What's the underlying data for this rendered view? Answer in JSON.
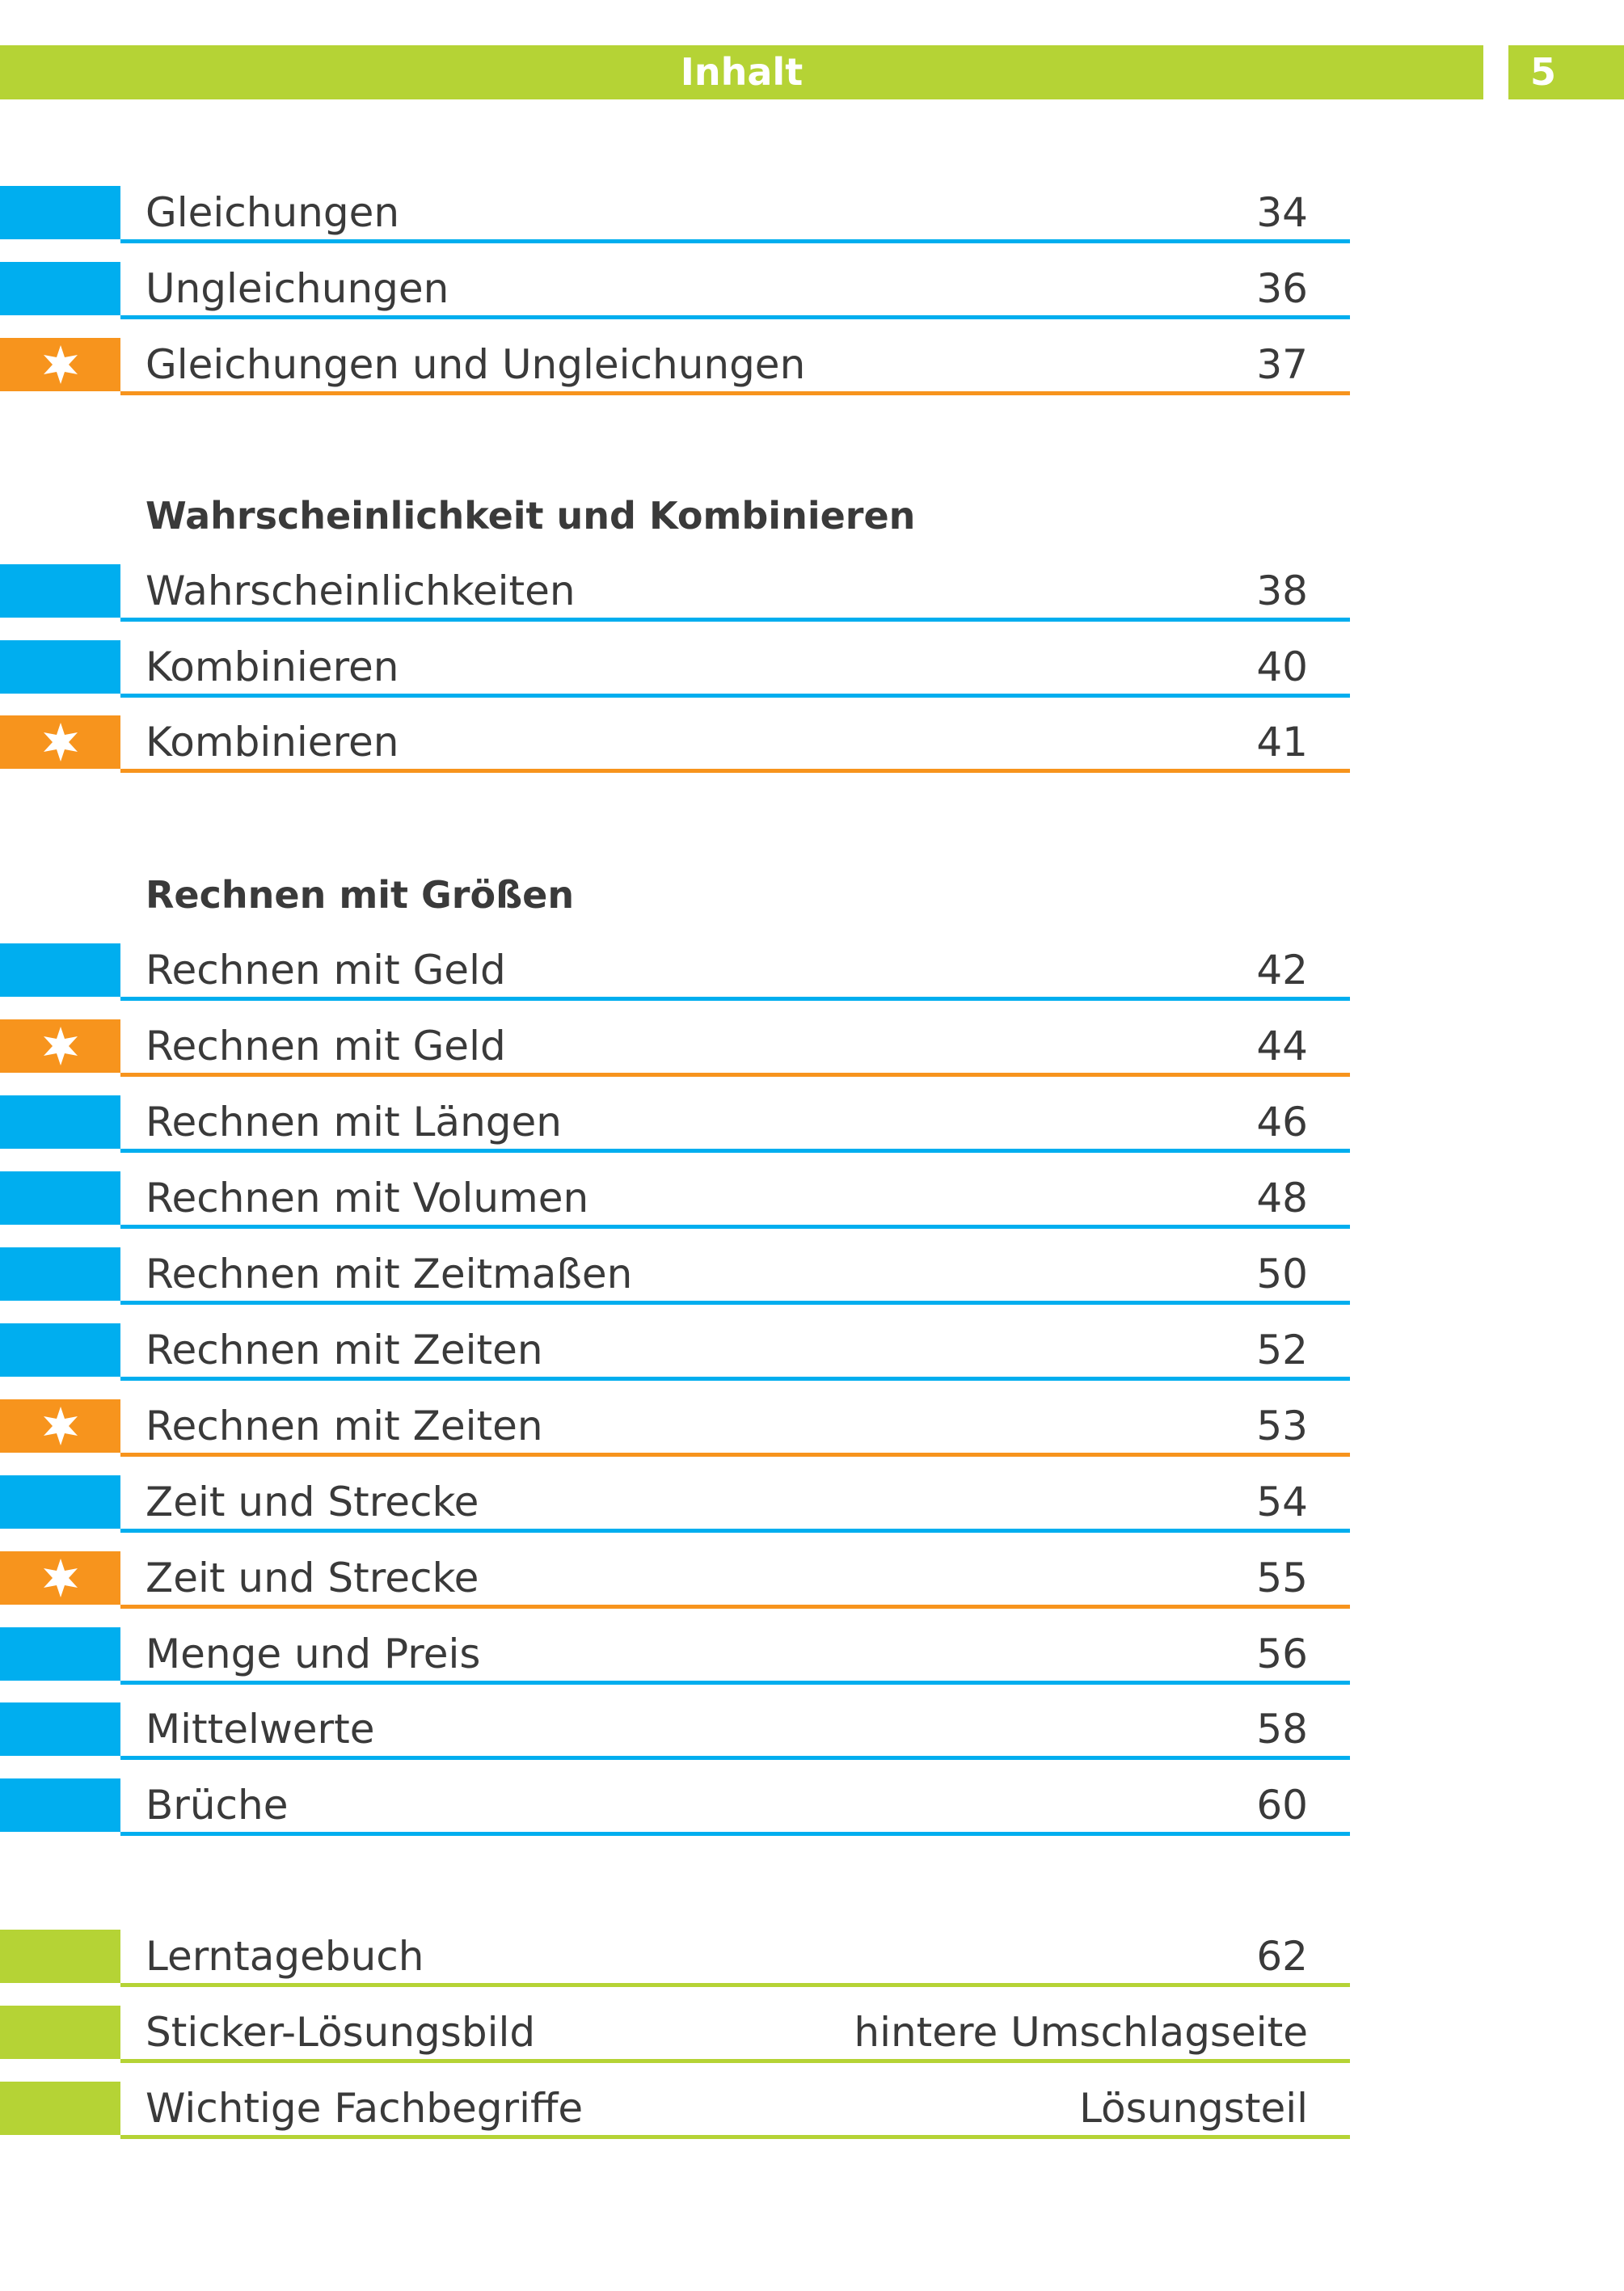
{
  "header": {
    "title": "Inhalt",
    "page_number": "5"
  },
  "colors": {
    "blue": "#00aeef",
    "orange": "#f7941d",
    "green": "#b5d335"
  },
  "marker_icons": {
    "orange": "star-icon"
  },
  "sections": [
    {
      "heading": "",
      "entries": [
        {
          "label": "Gleichungen",
          "page": "34",
          "color": "blue"
        },
        {
          "label": "Ungleichungen",
          "page": "36",
          "color": "blue"
        },
        {
          "label": "Gleichungen und Ungleichungen",
          "page": "37",
          "color": "orange"
        }
      ]
    },
    {
      "heading": "Wahrscheinlichkeit und Kombinieren",
      "entries": [
        {
          "label": "Wahrscheinlichkeiten",
          "page": "38",
          "color": "blue"
        },
        {
          "label": "Kombinieren",
          "page": "40",
          "color": "blue"
        },
        {
          "label": "Kombinieren",
          "page": "41",
          "color": "orange"
        }
      ]
    },
    {
      "heading": "Rechnen mit Größen",
      "entries": [
        {
          "label": "Rechnen mit Geld",
          "page": "42",
          "color": "blue"
        },
        {
          "label": "Rechnen mit Geld",
          "page": "44",
          "color": "orange"
        },
        {
          "label": "Rechnen mit Längen",
          "page": "46",
          "color": "blue"
        },
        {
          "label": "Rechnen mit Volumen",
          "page": "48",
          "color": "blue"
        },
        {
          "label": "Rechnen mit Zeitmaßen",
          "page": "50",
          "color": "blue"
        },
        {
          "label": "Rechnen mit Zeiten",
          "page": "52",
          "color": "blue"
        },
        {
          "label": "Rechnen mit Zeiten",
          "page": "53",
          "color": "orange"
        },
        {
          "label": "Zeit und Strecke",
          "page": "54",
          "color": "blue"
        },
        {
          "label": "Zeit und Strecke",
          "page": "55",
          "color": "orange"
        },
        {
          "label": "Menge und Preis",
          "page": "56",
          "color": "blue"
        },
        {
          "label": "Mittelwerte",
          "page": "58",
          "color": "blue"
        },
        {
          "label": "Brüche",
          "page": "60",
          "color": "blue"
        }
      ]
    },
    {
      "heading": "",
      "entries": [
        {
          "label": "Lerntagebuch",
          "page": "62",
          "color": "green"
        },
        {
          "label": "Sticker-Lösungsbild",
          "page": "hintere Umschlagseite",
          "color": "green"
        },
        {
          "label": "Wichtige Fachbegriffe",
          "page": "Lösungsteil",
          "color": "green"
        }
      ]
    }
  ]
}
